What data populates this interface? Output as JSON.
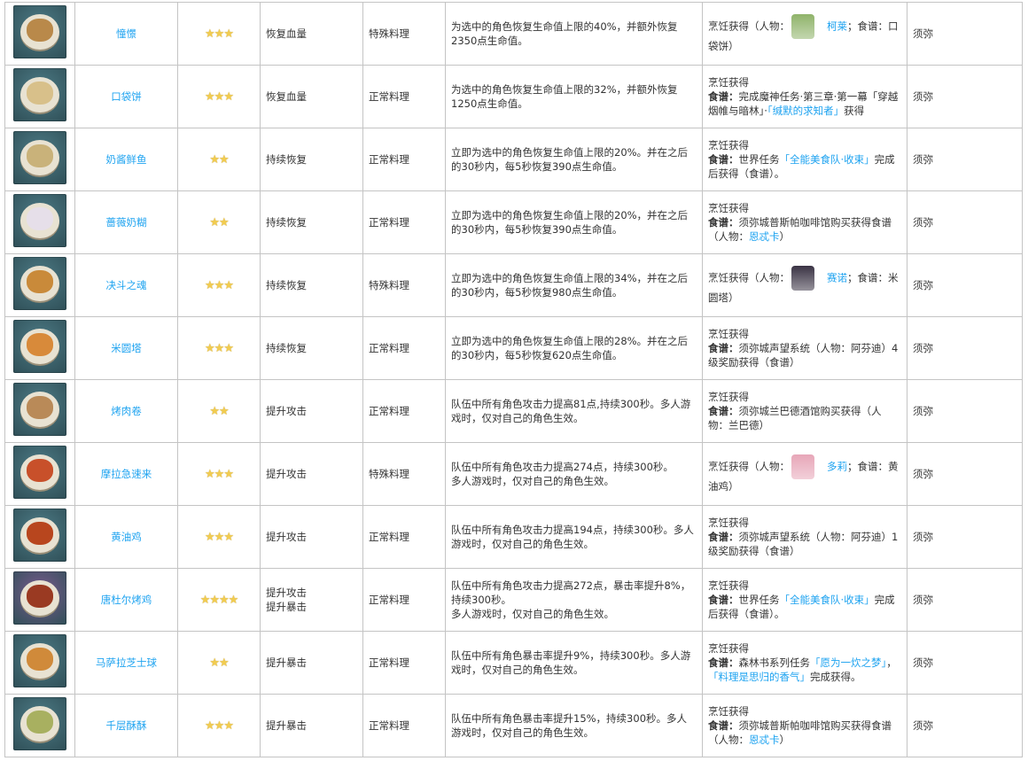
{
  "colors": {
    "link": "#1ea3f0",
    "star": "#f2cc4f",
    "border": "#c4c4c4"
  },
  "rows": [
    {
      "name": "憧憬",
      "stars": 3,
      "effect": [
        "恢复血量"
      ],
      "type": "特殊料理",
      "desc": [
        "为选中的角色恢复生命值上限的40%，并额外恢复2350点生命值。"
      ],
      "bg": "#4d7b86",
      "food": "#b9894a",
      "source": [
        {
          "t": "烹饪获得（人物："
        },
        {
          "avatar": "collei-avatar",
          "color": "#8fb36a"
        },
        {
          "t": "柯莱",
          "link": true
        },
        {
          "t": "；食谱：口袋饼）"
        }
      ],
      "region": "须弥"
    },
    {
      "name": "口袋饼",
      "stars": 3,
      "effect": [
        "恢复血量"
      ],
      "type": "正常料理",
      "desc": [
        "为选中的角色恢复生命值上限的32%，并额外恢复1250点生命值。"
      ],
      "bg": "#4d7b86",
      "food": "#d8c08a",
      "source": [
        {
          "t": "烹饪获得"
        },
        {
          "br": true
        },
        {
          "t": "食谱：",
          "b": true
        },
        {
          "t": "完成魔神任务·第三章·第一幕「穿越烟帷与暗林」·"
        },
        {
          "t": "「缄默的求知者」",
          "link": true
        },
        {
          "t": "获得"
        }
      ],
      "region": "须弥"
    },
    {
      "name": "奶酱鲜鱼",
      "stars": 2,
      "effect": [
        "持续恢复"
      ],
      "type": "正常料理",
      "desc": [
        "立即为选中的角色恢复生命值上限的20%。并在之后的30秒内，每5秒恢复390点生命值。"
      ],
      "bg": "#4d7b86",
      "food": "#c9b27a",
      "source": [
        {
          "t": "烹饪获得"
        },
        {
          "br": true
        },
        {
          "t": "食谱：",
          "b": true
        },
        {
          "t": "世界任务"
        },
        {
          "t": "「全能美食队·收束」",
          "link": true
        },
        {
          "t": "完成后获得（食谱）。"
        }
      ],
      "region": "须弥"
    },
    {
      "name": "蔷薇奶糊",
      "stars": 2,
      "effect": [
        "持续恢复"
      ],
      "type": "正常料理",
      "desc": [
        "立即为选中的角色恢复生命值上限的20%，并在之后的30秒内，每5秒恢复390点生命值。"
      ],
      "bg": "#4d7b86",
      "food": "#e6dfe9",
      "source": [
        {
          "t": "烹饪获得"
        },
        {
          "br": true
        },
        {
          "t": "食谱：",
          "b": true
        },
        {
          "t": "须弥城普斯帕咖啡馆购买获得食谱（人物："
        },
        {
          "t": "恩忒卡",
          "link": true
        },
        {
          "t": "）"
        }
      ],
      "region": "须弥"
    },
    {
      "name": "决斗之魂",
      "stars": 3,
      "effect": [
        "持续恢复"
      ],
      "type": "特殊料理",
      "desc": [
        "立即为选中的角色恢复生命值上限的34%，并在之后的30秒内，每5秒恢复980点生命值。"
      ],
      "bg": "#4d7b86",
      "food": "#c98a3a",
      "source": [
        {
          "t": "烹饪获得（人物："
        },
        {
          "avatar": "cyno-avatar",
          "color": "#3a3344"
        },
        {
          "t": "赛诺",
          "link": true
        },
        {
          "t": "；食谱：米圆塔）"
        }
      ],
      "region": "须弥"
    },
    {
      "name": "米圆塔",
      "stars": 3,
      "effect": [
        "持续恢复"
      ],
      "type": "正常料理",
      "desc": [
        "立即为选中的角色恢复生命值上限的28%。并在之后的30秒内，每5秒恢复620点生命值。"
      ],
      "bg": "#4d7b86",
      "food": "#d88a3a",
      "source": [
        {
          "t": "烹饪获得"
        },
        {
          "br": true
        },
        {
          "t": "食谱：",
          "b": true
        },
        {
          "t": "须弥城声望系统（人物：阿芬迪）4级奖励获得（食谱）"
        }
      ],
      "region": "须弥"
    },
    {
      "name": "烤肉卷",
      "stars": 2,
      "effect": [
        "提升攻击"
      ],
      "type": "正常料理",
      "desc": [
        "队伍中所有角色攻击力提高81点,持续300秒。多人游戏时，仅对自己的角色生效。"
      ],
      "bg": "#4d7b86",
      "food": "#b98a58",
      "source": [
        {
          "t": "烹饪获得"
        },
        {
          "br": true
        },
        {
          "t": "食谱：",
          "b": true
        },
        {
          "t": "须弥城兰巴德酒馆购买获得（人物：兰巴德）"
        }
      ],
      "region": "须弥"
    },
    {
      "name": "摩拉急速来",
      "stars": 3,
      "effect": [
        "提升攻击"
      ],
      "type": "特殊料理",
      "desc": [
        "队伍中所有角色攻击力提高274点，持续300秒。",
        "多人游戏时，仅对自己的角色生效。"
      ],
      "bg": "#4d7b86",
      "food": "#c8502a",
      "source": [
        {
          "t": "烹饪获得（人物："
        },
        {
          "avatar": "dori-avatar",
          "color": "#e7a6b8"
        },
        {
          "t": "多莉",
          "link": true
        },
        {
          "t": "；食谱：黄油鸡）"
        }
      ],
      "region": "须弥"
    },
    {
      "name": "黄油鸡",
      "stars": 3,
      "effect": [
        "提升攻击"
      ],
      "type": "正常料理",
      "desc": [
        "队伍中所有角色攻击力提高194点，持续300秒。多人游戏时，仅对自己的角色生效。"
      ],
      "bg": "#4d7b86",
      "food": "#b8461e",
      "source": [
        {
          "t": "烹饪获得"
        },
        {
          "br": true
        },
        {
          "t": "食谱：",
          "b": true
        },
        {
          "t": "须弥城声望系统（人物：阿芬迪）1级奖励获得（食谱）"
        }
      ],
      "region": "须弥"
    },
    {
      "name": "唐杜尔烤鸡",
      "stars": 4,
      "effect": [
        "提升攻击",
        "提升暴击"
      ],
      "type": "正常料理",
      "desc": [
        "队伍中所有角色攻击力提高272点，暴击率提升8%，持续300秒。",
        "多人游戏时，仅对自己的角色生效。"
      ],
      "bg": "#7a5a8e",
      "food": "#9a3a22",
      "source": [
        {
          "t": "烹饪获得"
        },
        {
          "br": true
        },
        {
          "t": "食谱：",
          "b": true
        },
        {
          "t": "世界任务"
        },
        {
          "t": "「全能美食队·收束」",
          "link": true
        },
        {
          "t": "完成后获得（食谱）。"
        }
      ],
      "region": "须弥"
    },
    {
      "name": "马萨拉芝士球",
      "stars": 2,
      "effect": [
        "提升暴击"
      ],
      "type": "正常料理",
      "desc": [
        "队伍中所有角色暴击率提升9%，持续300秒。多人游戏时，仅对自己的角色生效。"
      ],
      "bg": "#4d7b86",
      "food": "#d08a3a",
      "source": [
        {
          "t": "烹饪获得"
        },
        {
          "br": true
        },
        {
          "t": "食谱：",
          "b": true
        },
        {
          "t": "森林书系列任务"
        },
        {
          "t": "「愿为一炊之梦」",
          "link": true
        },
        {
          "t": "，"
        },
        {
          "t": "「料理是思归的香气」",
          "link": true
        },
        {
          "t": "完成获得。"
        }
      ],
      "region": "须弥"
    },
    {
      "name": "千层酥酥",
      "stars": 3,
      "effect": [
        "提升暴击"
      ],
      "type": "正常料理",
      "desc": [
        "队伍中所有角色暴击率提升15%，持续300秒。多人游戏时，仅对自己的角色生效。"
      ],
      "bg": "#4d7b86",
      "food": "#a8b060",
      "source": [
        {
          "t": "烹饪获得"
        },
        {
          "br": true
        },
        {
          "t": "食谱：",
          "b": true
        },
        {
          "t": "须弥城普斯帕咖啡馆购买获得食谱（人物："
        },
        {
          "t": "恩忒卡",
          "link": true
        },
        {
          "t": "）"
        }
      ],
      "region": "须弥"
    }
  ]
}
